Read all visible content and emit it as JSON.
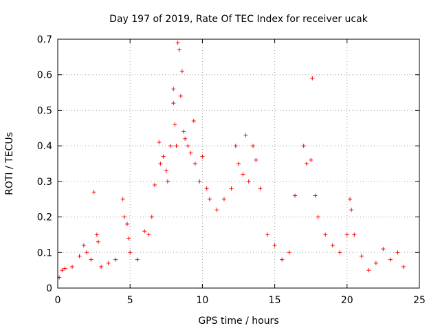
{
  "chart_data": {
    "type": "scatter",
    "title": "Day 197 of 2019, Rate Of TEC Index for receiver ucak",
    "xlabel": "GPS time / hours",
    "ylabel": "ROTI / TECUs",
    "xlim": [
      0,
      25
    ],
    "ylim": [
      0,
      0.7
    ],
    "xticks": [
      0,
      5,
      10,
      15,
      20,
      25
    ],
    "yticks": [
      0,
      0.1,
      0.2,
      0.3,
      0.4,
      0.5,
      0.6,
      0.7
    ],
    "xtick_labels": [
      "0",
      "5",
      "10",
      "15",
      "20",
      "25"
    ],
    "ytick_labels": [
      "0",
      "0.1",
      "0.2",
      "0.3",
      "0.4",
      "0.5",
      "0.6",
      "0.7"
    ],
    "grid": true,
    "marker": "plus",
    "color": "#ff0000",
    "series": [
      {
        "points": [
          [
            0.1,
            0.03
          ],
          [
            0.3,
            0.05
          ],
          [
            0.5,
            0.055
          ],
          [
            1.0,
            0.06
          ],
          [
            1.5,
            0.09
          ],
          [
            1.8,
            0.12
          ],
          [
            2.0,
            0.1
          ],
          [
            2.3,
            0.08
          ],
          [
            2.5,
            0.27
          ],
          [
            2.7,
            0.15
          ],
          [
            2.8,
            0.13
          ],
          [
            3.0,
            0.06
          ],
          [
            3.5,
            0.07
          ],
          [
            4.0,
            0.08
          ],
          [
            4.5,
            0.25
          ],
          [
            4.6,
            0.2
          ],
          [
            4.8,
            0.18
          ],
          [
            4.9,
            0.14
          ],
          [
            5.0,
            0.1
          ],
          [
            5.5,
            0.08
          ],
          [
            6.0,
            0.16
          ],
          [
            6.3,
            0.15
          ],
          [
            6.5,
            0.2
          ],
          [
            6.7,
            0.29
          ],
          [
            7.0,
            0.41
          ],
          [
            7.1,
            0.35
          ],
          [
            7.3,
            0.37
          ],
          [
            7.5,
            0.33
          ],
          [
            7.6,
            0.3
          ],
          [
            7.8,
            0.4
          ],
          [
            8.0,
            0.56
          ],
          [
            8.0,
            0.52
          ],
          [
            8.1,
            0.46
          ],
          [
            8.2,
            0.4
          ],
          [
            8.3,
            0.69
          ],
          [
            8.4,
            0.67
          ],
          [
            8.5,
            0.54
          ],
          [
            8.6,
            0.61
          ],
          [
            8.7,
            0.44
          ],
          [
            8.8,
            0.42
          ],
          [
            9.0,
            0.4
          ],
          [
            9.2,
            0.38
          ],
          [
            9.4,
            0.47
          ],
          [
            9.5,
            0.35
          ],
          [
            9.8,
            0.3
          ],
          [
            10.0,
            0.37
          ],
          [
            10.3,
            0.28
          ],
          [
            10.5,
            0.25
          ],
          [
            11.0,
            0.22
          ],
          [
            11.5,
            0.25
          ],
          [
            12.0,
            0.28
          ],
          [
            12.3,
            0.4
          ],
          [
            12.5,
            0.35
          ],
          [
            12.8,
            0.32
          ],
          [
            13.0,
            0.43
          ],
          [
            13.2,
            0.3
          ],
          [
            13.5,
            0.4
          ],
          [
            13.7,
            0.36
          ],
          [
            14.0,
            0.28
          ],
          [
            14.5,
            0.15
          ],
          [
            15.0,
            0.12
          ],
          [
            15.5,
            0.08
          ],
          [
            16.0,
            0.1
          ],
          [
            16.4,
            0.26
          ],
          [
            17.0,
            0.4
          ],
          [
            17.2,
            0.35
          ],
          [
            17.5,
            0.36
          ],
          [
            17.6,
            0.59
          ],
          [
            17.8,
            0.26
          ],
          [
            18.0,
            0.2
          ],
          [
            18.5,
            0.15
          ],
          [
            19.0,
            0.12
          ],
          [
            19.5,
            0.1
          ],
          [
            20.0,
            0.15
          ],
          [
            20.2,
            0.25
          ],
          [
            20.3,
            0.22
          ],
          [
            20.5,
            0.15
          ],
          [
            21.0,
            0.09
          ],
          [
            21.5,
            0.05
          ],
          [
            22.0,
            0.07
          ],
          [
            22.5,
            0.11
          ],
          [
            23.0,
            0.08
          ],
          [
            23.5,
            0.1
          ],
          [
            23.9,
            0.06
          ]
        ]
      }
    ]
  }
}
